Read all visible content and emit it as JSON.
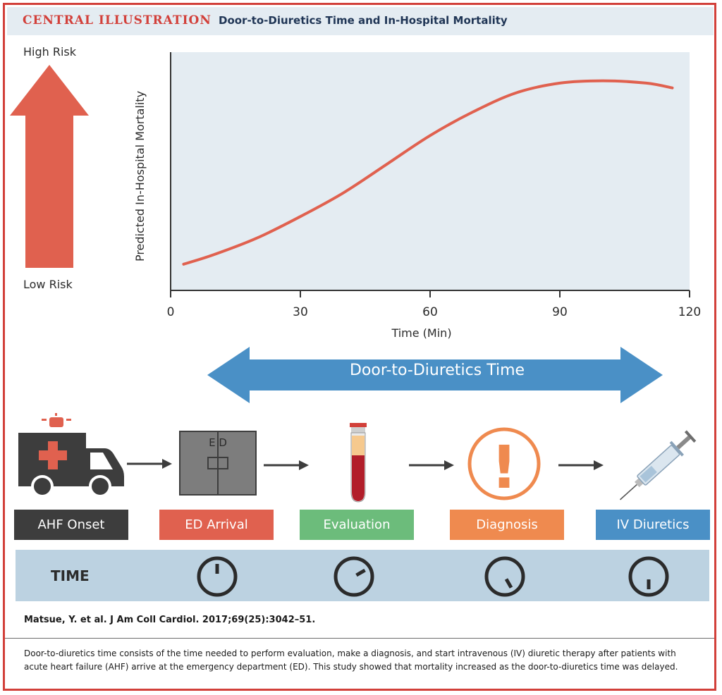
{
  "header": {
    "label": "CENTRAL ILLUSTRATION",
    "title": "Door-to-Diuretics Time and In-Hospital Mortality"
  },
  "risk": {
    "high_label": "High Risk",
    "low_label": "Low Risk",
    "arrow_color": "#e0614f"
  },
  "chart_data": {
    "type": "line",
    "title": "",
    "xlabel": "Time (Min)",
    "ylabel": "Predicted In-Hospital Mortality",
    "xlim": [
      0,
      120
    ],
    "ylim": [
      0,
      1
    ],
    "xticks": [
      0,
      30,
      60,
      90,
      120
    ],
    "grid": false,
    "background": "#e4ecf2",
    "line_color": "#e0614f",
    "series": [
      {
        "x": [
          3,
          10,
          20,
          30,
          40,
          50,
          60,
          70,
          80,
          90,
          100,
          110,
          116
        ],
        "y": [
          0.11,
          0.15,
          0.22,
          0.31,
          0.41,
          0.53,
          0.65,
          0.75,
          0.83,
          0.87,
          0.88,
          0.87,
          0.85
        ]
      }
    ]
  },
  "door_arrow": {
    "label": "Door-to-Diuretics Time",
    "color": "#4a90c6"
  },
  "stages": [
    {
      "label": "AHF Onset",
      "color": "#3d3d3d",
      "icon": "ambulance-icon"
    },
    {
      "label": "ED Arrival",
      "color": "#e0614f",
      "icon": "ed-door-icon",
      "door_text": "E D"
    },
    {
      "label": "Evaluation",
      "color": "#6cbc7b",
      "icon": "blood-tube-icon"
    },
    {
      "label": "Diagnosis",
      "color": "#ef8a4f",
      "icon": "exclamation-icon",
      "mark": "!"
    },
    {
      "label": "IV Diuretics",
      "color": "#4a90c6",
      "icon": "syringe-icon"
    }
  ],
  "time_row": {
    "label": "TIME",
    "clock_icon": "clock-icon",
    "clock_minutes": [
      0,
      10,
      25,
      30
    ]
  },
  "citation": "Matsue, Y. et al. J Am Coll Cardiol. 2017;69(25):3042–51.",
  "caption": "Door-to-diuretics time consists of the time needed to perform evaluation, make a diagnosis, and start intravenous (IV) diuretic therapy after patients with acute heart failure (AHF) arrive at the emergency department (ED). This study showed that mortality increased as the door-to-diuretics time was delayed."
}
